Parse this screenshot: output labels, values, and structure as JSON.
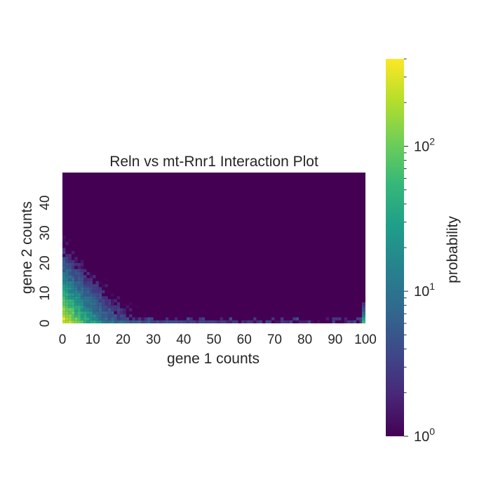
{
  "chart_data": {
    "type": "heatmap",
    "title": "Reln vs mt-Rnr1 Interaction Plot",
    "xlabel": "gene 1 counts",
    "ylabel": "gene 2 counts",
    "xlim": [
      0,
      100
    ],
    "ylim": [
      0,
      50
    ],
    "x_ticks": [
      "0",
      "10",
      "20",
      "30",
      "40",
      "50",
      "60",
      "70",
      "80",
      "90",
      "100"
    ],
    "y_ticks": [
      "0",
      "10",
      "20",
      "30",
      "40"
    ],
    "grid": false,
    "colormap": "viridis",
    "colorbar": {
      "label": "probability",
      "scale": "log",
      "range": [
        1,
        400
      ],
      "ticks": [
        {
          "value": 1,
          "base": "10",
          "exp": "0"
        },
        {
          "value": 10,
          "base": "10",
          "exp": "1"
        },
        {
          "value": 100,
          "base": "10",
          "exp": "2"
        }
      ]
    },
    "density_model": {
      "description": "Probability values are highest near the origin and decay along both axes; a thin band of low values persists along gene 2 = 0 up to gene 1 = 100.",
      "peak_value": 400,
      "peak_location": [
        1,
        2
      ],
      "background_value": 1
    },
    "colors": {
      "viridis": [
        "#440154",
        "#482878",
        "#3e4989",
        "#31688e",
        "#26828e",
        "#1f9e89",
        "#35b779",
        "#6ece58",
        "#b5de2b",
        "#fde725"
      ]
    }
  }
}
